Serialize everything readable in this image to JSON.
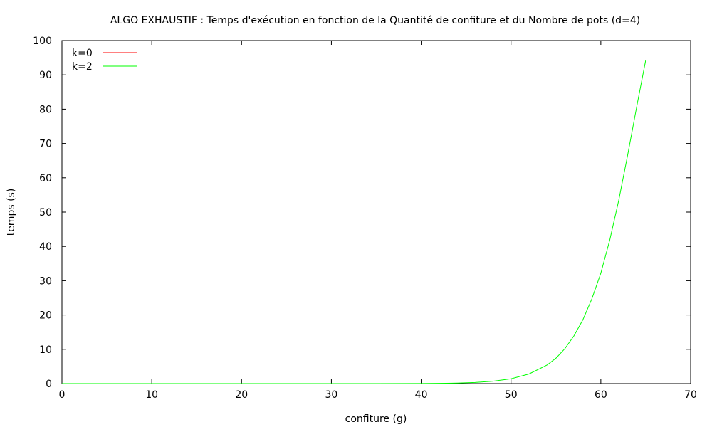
{
  "chart_data": {
    "type": "line",
    "title": "ALGO EXHAUSTIF : Temps d'exécution en fonction de la Quantité de confiture et du Nombre de pots (d=4)",
    "xlabel": "confiture (g)",
    "ylabel": "temps (s)",
    "xlim": [
      0,
      70
    ],
    "ylim": [
      0,
      100
    ],
    "xticks": [
      0,
      10,
      20,
      30,
      40,
      50,
      60,
      70
    ],
    "yticks": [
      0,
      10,
      20,
      30,
      40,
      50,
      60,
      70,
      80,
      90,
      100
    ],
    "grid": false,
    "legend_position": "top-left",
    "series": [
      {
        "name": "k=0",
        "color": "#ff0000",
        "x": [],
        "y": []
      },
      {
        "name": "k=2",
        "color": "#00ff00",
        "x": [
          0,
          10,
          20,
          30,
          35,
          40,
          42,
          44,
          46,
          48,
          50,
          52,
          54,
          55,
          56,
          57,
          58,
          59,
          60,
          61,
          62,
          63,
          64,
          65
        ],
        "y": [
          0,
          0,
          0,
          0,
          0.005,
          0.03,
          0.07,
          0.15,
          0.33,
          0.7,
          1.4,
          2.8,
          5.4,
          7.4,
          10.2,
          13.9,
          18.6,
          24.7,
          32.2,
          41.9,
          53.5,
          66.8,
          80.8,
          94.3
        ]
      }
    ]
  }
}
